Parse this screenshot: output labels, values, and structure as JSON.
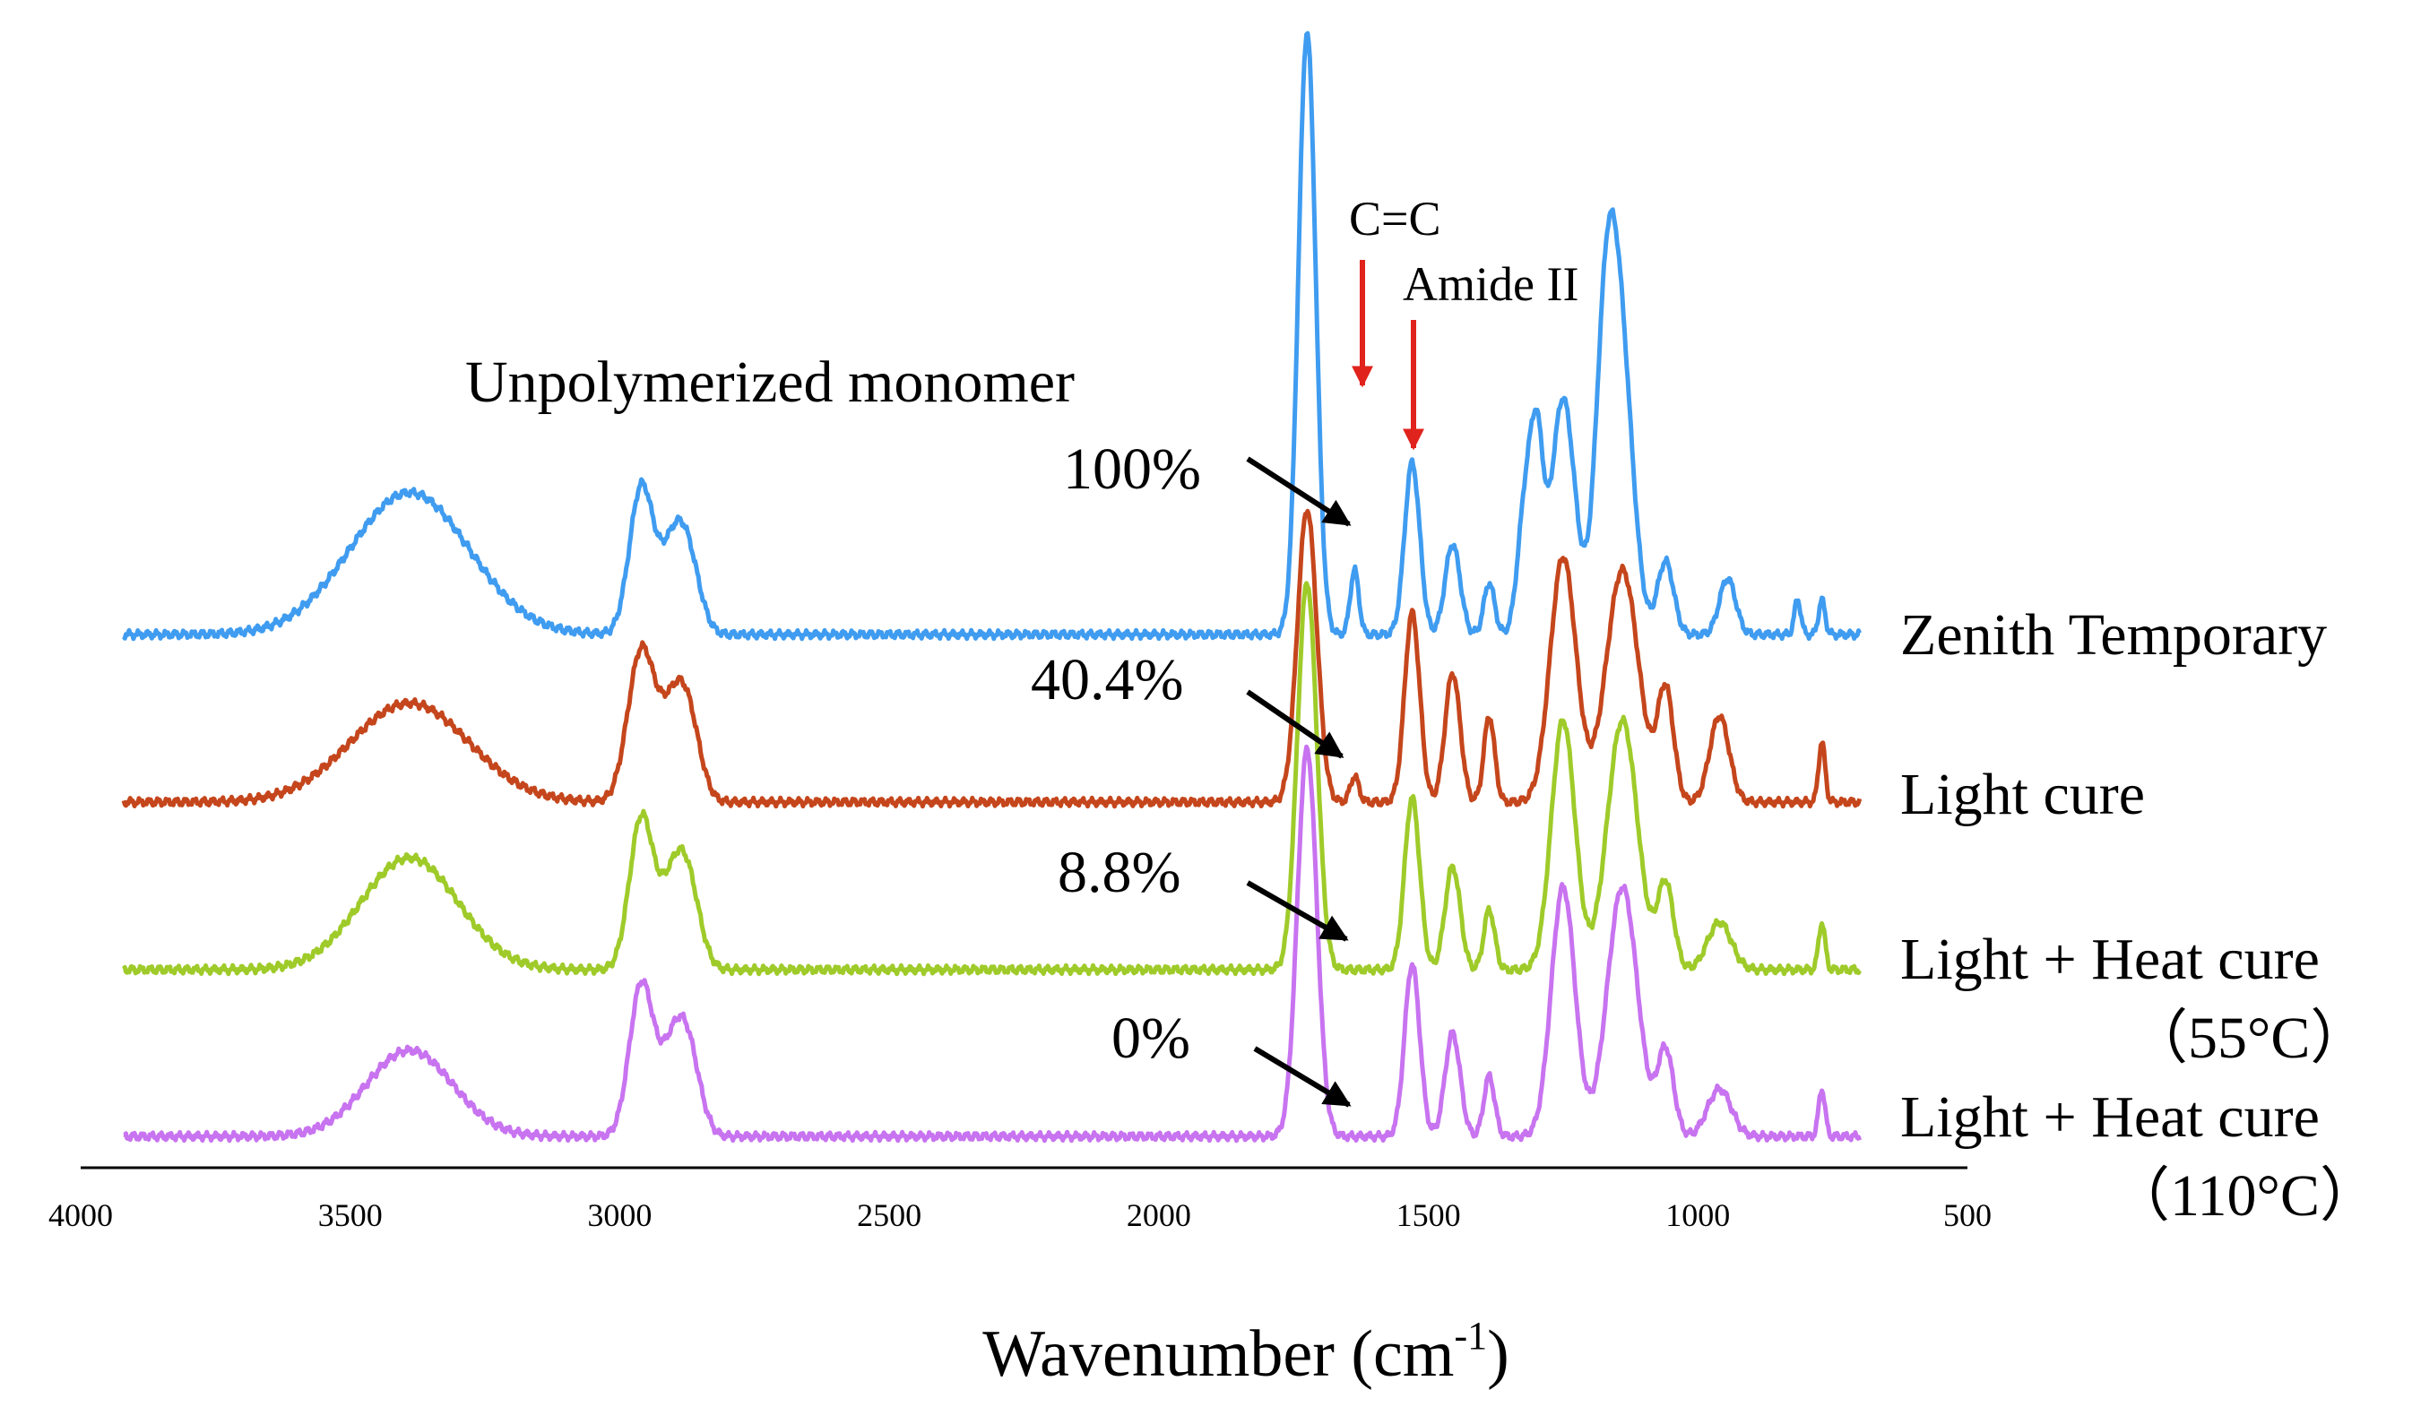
{
  "chart_data": {
    "type": "line",
    "xlabel": "Wavenumber (cm",
    "xlabel_sup": "-1",
    "xlabel_close": ")",
    "xlim": [
      4000,
      500
    ],
    "x_reversed": true,
    "x_ticks": [
      "4000",
      "3500",
      "3000",
      "2500",
      "2000",
      "1500",
      "1000",
      "500"
    ],
    "y_axis_shown": false,
    "grid": false,
    "colors": {
      "zenith": "#3f9cf0",
      "light": "#c5461c",
      "heat55": "#9fcb2a",
      "heat110": "#c873f0",
      "arrow_red": "#e0231c",
      "arrow_black": "#000000"
    },
    "annotations": {
      "title_note": "Unpolymerized monomer",
      "cc": "C=C",
      "amide": "Amide II",
      "cc_position": 1625,
      "amide_position": 1530
    },
    "series": [
      {
        "name": "Zenith Temporary",
        "label_line2": "",
        "monomer_percent": "100%",
        "color_key": "zenith",
        "baseline": 0.0,
        "peaks": [
          [
            3390,
            0.33,
            110
          ],
          [
            2960,
            0.34,
            22
          ],
          [
            2900,
            0.2,
            25
          ],
          [
            2870,
            0.12,
            22
          ],
          [
            1725,
            1.4,
            16
          ],
          [
            1637,
            0.15,
            8
          ],
          [
            1530,
            0.4,
            14
          ],
          [
            1455,
            0.21,
            14
          ],
          [
            1387,
            0.12,
            10
          ],
          [
            1320,
            0.3,
            14
          ],
          [
            1298,
            0.38,
            12
          ],
          [
            1250,
            0.55,
            22
          ],
          [
            1170,
            0.7,
            20
          ],
          [
            1140,
            0.55,
            22
          ],
          [
            1060,
            0.17,
            15
          ],
          [
            945,
            0.13,
            15
          ],
          [
            815,
            0.08,
            6
          ],
          [
            770,
            0.08,
            6
          ]
        ]
      },
      {
        "name": "Light cure",
        "label_line2": "",
        "monomer_percent": "40.4%",
        "color_key": "light",
        "baseline": 0.0,
        "peaks": [
          [
            3390,
            0.23,
            110
          ],
          [
            2960,
            0.35,
            25
          ],
          [
            2900,
            0.2,
            25
          ],
          [
            2870,
            0.14,
            22
          ],
          [
            1725,
            0.68,
            18
          ],
          [
            1637,
            0.06,
            8
          ],
          [
            1530,
            0.44,
            14
          ],
          [
            1455,
            0.3,
            14
          ],
          [
            1387,
            0.2,
            10
          ],
          [
            1250,
            0.57,
            24
          ],
          [
            1140,
            0.54,
            30
          ],
          [
            1060,
            0.26,
            15
          ],
          [
            960,
            0.2,
            18
          ],
          [
            770,
            0.14,
            6
          ]
        ]
      },
      {
        "name": "Light + Heat cure",
        "label_line2": "（55°C）",
        "monomer_percent": "8.8%",
        "color_key": "heat55",
        "baseline": 0.0,
        "peaks": [
          [
            3390,
            0.26,
            90
          ],
          [
            2960,
            0.35,
            22
          ],
          [
            2900,
            0.2,
            25
          ],
          [
            2870,
            0.14,
            22
          ],
          [
            1725,
            0.9,
            18
          ],
          [
            1530,
            0.4,
            14
          ],
          [
            1455,
            0.24,
            14
          ],
          [
            1387,
            0.14,
            10
          ],
          [
            1250,
            0.58,
            22
          ],
          [
            1140,
            0.58,
            28
          ],
          [
            1060,
            0.2,
            15
          ],
          [
            960,
            0.11,
            22
          ],
          [
            770,
            0.11,
            6
          ]
        ]
      },
      {
        "name": "Light + Heat cure",
        "label_line2": "（110°C）",
        "monomer_percent": "0%",
        "color_key": "heat110",
        "baseline": 0.0,
        "peaks": [
          [
            3390,
            0.2,
            80
          ],
          [
            2960,
            0.35,
            22
          ],
          [
            2900,
            0.2,
            25
          ],
          [
            2870,
            0.14,
            22
          ],
          [
            1725,
            0.9,
            18
          ],
          [
            1530,
            0.4,
            14
          ],
          [
            1455,
            0.24,
            14
          ],
          [
            1387,
            0.14,
            10
          ],
          [
            1250,
            0.58,
            22
          ],
          [
            1140,
            0.58,
            28
          ],
          [
            1060,
            0.2,
            15
          ],
          [
            960,
            0.11,
            22
          ],
          [
            770,
            0.11,
            6
          ]
        ]
      }
    ]
  }
}
